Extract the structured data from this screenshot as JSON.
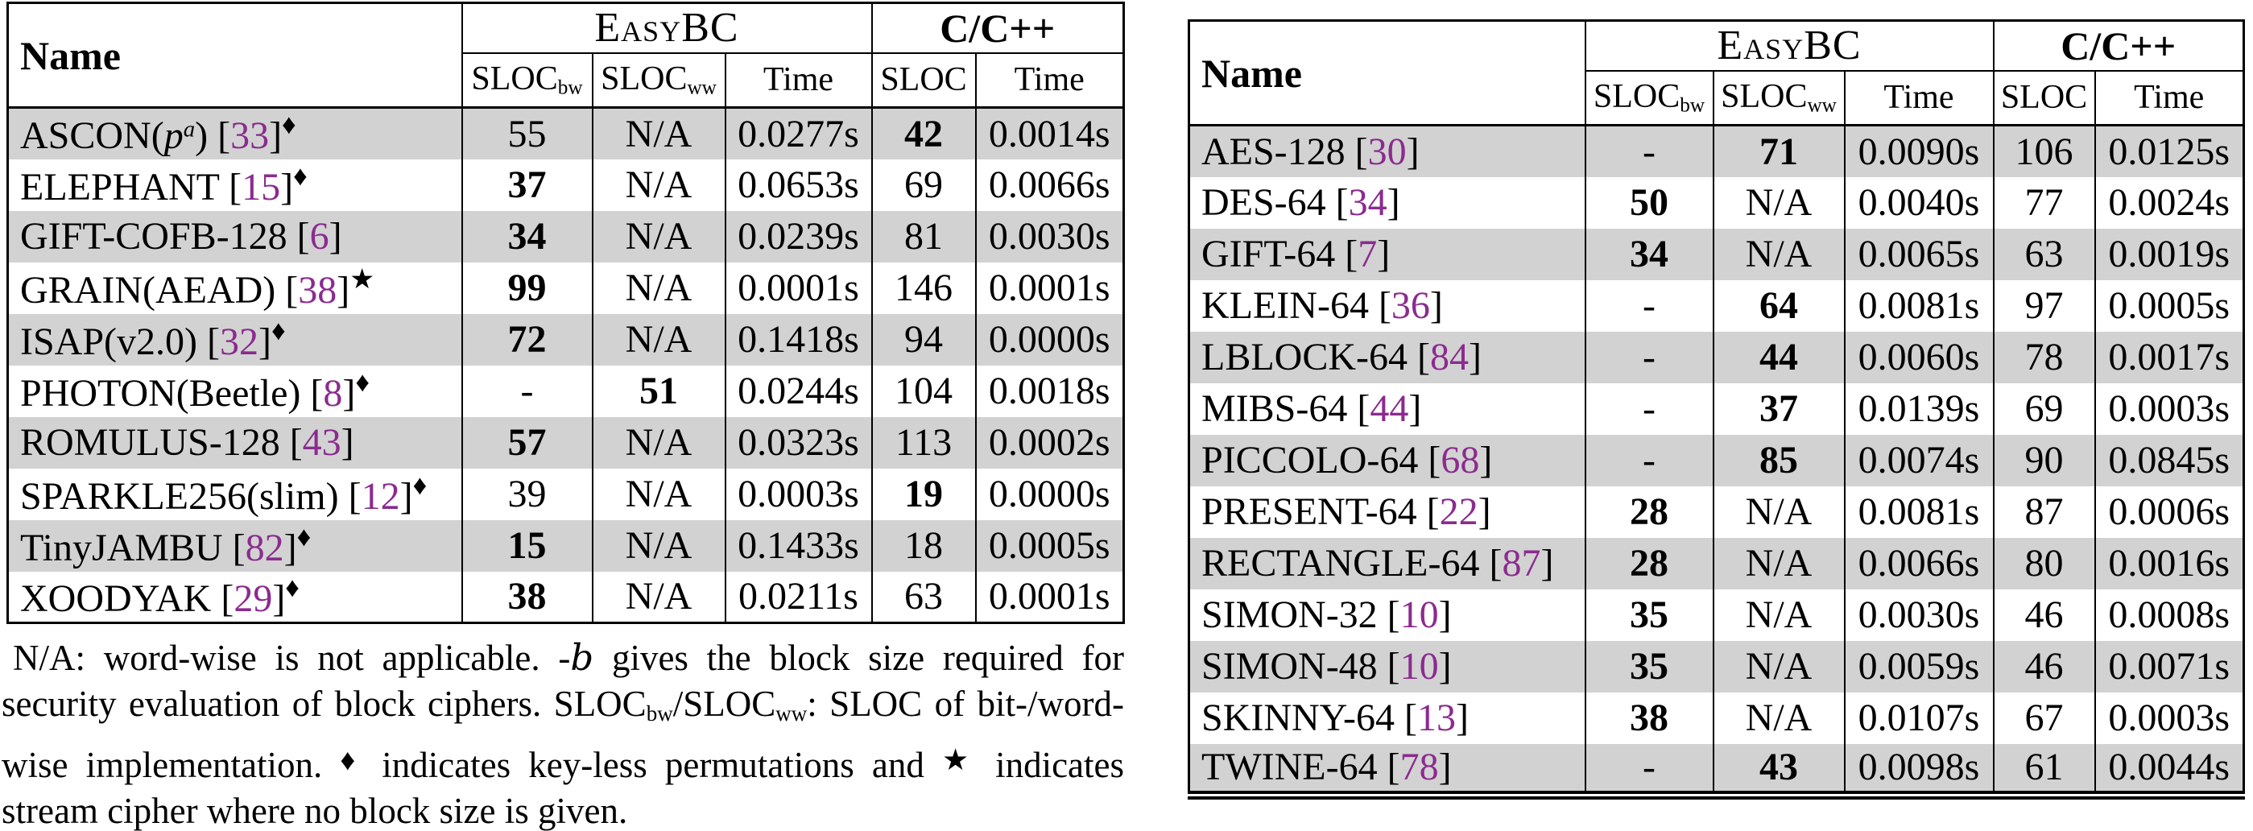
{
  "styles": {
    "citation_color": "#8B2B8F",
    "stripe_color": "#D2D2D2",
    "border_color": "#000000"
  },
  "left_table": {
    "headers": {
      "name": "Name",
      "groups": [
        {
          "label": "EasyBC"
        },
        {
          "label": "C/C++"
        }
      ],
      "subcolumns": [
        {
          "label": "SLOC",
          "subscript": "bw"
        },
        {
          "label": "SLOC",
          "subscript": "ww"
        },
        {
          "label": "Time",
          "subscript": ""
        },
        {
          "label": "SLOC",
          "subscript": ""
        },
        {
          "label": "Time",
          "subscript": ""
        }
      ]
    },
    "rows": [
      {
        "name": [
          {
            "t": "ASCON("
          },
          {
            "t": "p",
            "s": "i"
          },
          {
            "t": "a",
            "s": "supi"
          },
          {
            "t": ") ["
          },
          {
            "t": "33",
            "s": "cite"
          },
          {
            "t": "]"
          },
          {
            "t": "♦",
            "s": "sym"
          }
        ],
        "cells": [
          {
            "v": "55"
          },
          {
            "v": "N/A"
          },
          {
            "v": "0.0277s"
          },
          {
            "v": "42",
            "b": true
          },
          {
            "v": "0.0014s"
          }
        ]
      },
      {
        "name": [
          {
            "t": "ELEPHANT ["
          },
          {
            "t": "15",
            "s": "cite"
          },
          {
            "t": "]"
          },
          {
            "t": "♦",
            "s": "sym"
          }
        ],
        "cells": [
          {
            "v": "37",
            "b": true
          },
          {
            "v": "N/A"
          },
          {
            "v": "0.0653s"
          },
          {
            "v": "69"
          },
          {
            "v": "0.0066s"
          }
        ]
      },
      {
        "name": [
          {
            "t": "GIFT-COFB-128 ["
          },
          {
            "t": "6",
            "s": "cite"
          },
          {
            "t": "]"
          }
        ],
        "cells": [
          {
            "v": "34",
            "b": true
          },
          {
            "v": "N/A"
          },
          {
            "v": "0.0239s"
          },
          {
            "v": "81"
          },
          {
            "v": "0.0030s"
          }
        ]
      },
      {
        "name": [
          {
            "t": "GRAIN(AEAD) ["
          },
          {
            "t": "38",
            "s": "cite"
          },
          {
            "t": "]"
          },
          {
            "t": "★",
            "s": "sym"
          }
        ],
        "cells": [
          {
            "v": "99",
            "b": true
          },
          {
            "v": "N/A"
          },
          {
            "v": "0.0001s"
          },
          {
            "v": "146"
          },
          {
            "v": "0.0001s"
          }
        ]
      },
      {
        "name": [
          {
            "t": "ISAP(v2.0) ["
          },
          {
            "t": "32",
            "s": "cite"
          },
          {
            "t": "]"
          },
          {
            "t": "♦",
            "s": "sym"
          }
        ],
        "cells": [
          {
            "v": "72",
            "b": true
          },
          {
            "v": "N/A"
          },
          {
            "v": "0.1418s"
          },
          {
            "v": "94"
          },
          {
            "v": "0.0000s"
          }
        ]
      },
      {
        "name": [
          {
            "t": "PHOTON(Beetle) ["
          },
          {
            "t": "8",
            "s": "cite"
          },
          {
            "t": "]"
          },
          {
            "t": "♦",
            "s": "sym"
          }
        ],
        "cells": [
          {
            "v": "-"
          },
          {
            "v": "51",
            "b": true
          },
          {
            "v": "0.0244s"
          },
          {
            "v": "104"
          },
          {
            "v": "0.0018s"
          }
        ]
      },
      {
        "name": [
          {
            "t": "ROMULUS-128 ["
          },
          {
            "t": "43",
            "s": "cite"
          },
          {
            "t": "]"
          }
        ],
        "cells": [
          {
            "v": "57",
            "b": true
          },
          {
            "v": "N/A"
          },
          {
            "v": "0.0323s"
          },
          {
            "v": "113"
          },
          {
            "v": "0.0002s"
          }
        ]
      },
      {
        "name": [
          {
            "t": "SPARKLE256(slim) ["
          },
          {
            "t": "12",
            "s": "cite"
          },
          {
            "t": "]"
          },
          {
            "t": "♦",
            "s": "sym"
          }
        ],
        "cells": [
          {
            "v": "39"
          },
          {
            "v": "N/A"
          },
          {
            "v": "0.0003s"
          },
          {
            "v": "19",
            "b": true
          },
          {
            "v": "0.0000s"
          }
        ]
      },
      {
        "name": [
          {
            "t": "TinyJAMBU ["
          },
          {
            "t": "82",
            "s": "cite"
          },
          {
            "t": "]"
          },
          {
            "t": "♦",
            "s": "sym"
          }
        ],
        "cells": [
          {
            "v": "15",
            "b": true
          },
          {
            "v": "N/A"
          },
          {
            "v": "0.1433s"
          },
          {
            "v": "18"
          },
          {
            "v": "0.0005s"
          }
        ]
      },
      {
        "name": [
          {
            "t": "XOODYAK ["
          },
          {
            "t": "29",
            "s": "cite"
          },
          {
            "t": "]"
          },
          {
            "t": "♦",
            "s": "sym"
          }
        ],
        "cells": [
          {
            "v": "38",
            "b": true
          },
          {
            "v": "N/A"
          },
          {
            "v": "0.0211s"
          },
          {
            "v": "63"
          },
          {
            "v": "0.0001s"
          }
        ]
      }
    ]
  },
  "right_table": {
    "headers": {
      "name": "Name",
      "groups": [
        {
          "label": "EasyBC"
        },
        {
          "label": "C/C++"
        }
      ],
      "subcolumns": [
        {
          "label": "SLOC",
          "subscript": "bw"
        },
        {
          "label": "SLOC",
          "subscript": "ww"
        },
        {
          "label": "Time",
          "subscript": ""
        },
        {
          "label": "SLOC",
          "subscript": ""
        },
        {
          "label": "Time",
          "subscript": ""
        }
      ]
    },
    "rows": [
      {
        "name": [
          {
            "t": "AES-128 ["
          },
          {
            "t": "30",
            "s": "cite"
          },
          {
            "t": "]"
          }
        ],
        "cells": [
          {
            "v": "-"
          },
          {
            "v": "71",
            "b": true
          },
          {
            "v": "0.0090s"
          },
          {
            "v": "106"
          },
          {
            "v": "0.0125s"
          }
        ]
      },
      {
        "name": [
          {
            "t": "DES-64 ["
          },
          {
            "t": "34",
            "s": "cite"
          },
          {
            "t": "]"
          }
        ],
        "cells": [
          {
            "v": "50",
            "b": true
          },
          {
            "v": "N/A"
          },
          {
            "v": "0.0040s"
          },
          {
            "v": "77"
          },
          {
            "v": "0.0024s"
          }
        ]
      },
      {
        "name": [
          {
            "t": "GIFT-64 ["
          },
          {
            "t": "7",
            "s": "cite"
          },
          {
            "t": "]"
          }
        ],
        "cells": [
          {
            "v": "34",
            "b": true
          },
          {
            "v": "N/A"
          },
          {
            "v": "0.0065s"
          },
          {
            "v": "63"
          },
          {
            "v": "0.0019s"
          }
        ]
      },
      {
        "name": [
          {
            "t": "KLEIN-64 ["
          },
          {
            "t": "36",
            "s": "cite"
          },
          {
            "t": "]"
          }
        ],
        "cells": [
          {
            "v": "-"
          },
          {
            "v": "64",
            "b": true
          },
          {
            "v": "0.0081s"
          },
          {
            "v": "97"
          },
          {
            "v": "0.0005s"
          }
        ]
      },
      {
        "name": [
          {
            "t": "LBLOCK-64 ["
          },
          {
            "t": "84",
            "s": "cite"
          },
          {
            "t": "]"
          }
        ],
        "cells": [
          {
            "v": "-"
          },
          {
            "v": "44",
            "b": true
          },
          {
            "v": "0.0060s"
          },
          {
            "v": "78"
          },
          {
            "v": "0.0017s"
          }
        ]
      },
      {
        "name": [
          {
            "t": "MIBS-64 ["
          },
          {
            "t": "44",
            "s": "cite"
          },
          {
            "t": "]"
          }
        ],
        "cells": [
          {
            "v": "-"
          },
          {
            "v": "37",
            "b": true
          },
          {
            "v": "0.0139s"
          },
          {
            "v": "69"
          },
          {
            "v": "0.0003s"
          }
        ]
      },
      {
        "name": [
          {
            "t": "PICCOLO-64 ["
          },
          {
            "t": "68",
            "s": "cite"
          },
          {
            "t": "]"
          }
        ],
        "cells": [
          {
            "v": "-"
          },
          {
            "v": "85",
            "b": true
          },
          {
            "v": "0.0074s"
          },
          {
            "v": "90"
          },
          {
            "v": "0.0845s"
          }
        ]
      },
      {
        "name": [
          {
            "t": "PRESENT-64 ["
          },
          {
            "t": "22",
            "s": "cite"
          },
          {
            "t": "]"
          }
        ],
        "cells": [
          {
            "v": "28",
            "b": true
          },
          {
            "v": "N/A"
          },
          {
            "v": "0.0081s"
          },
          {
            "v": "87"
          },
          {
            "v": "0.0006s"
          }
        ]
      },
      {
        "name": [
          {
            "t": "RECTANGLE-64 ["
          },
          {
            "t": "87",
            "s": "cite"
          },
          {
            "t": "]"
          }
        ],
        "cells": [
          {
            "v": "28",
            "b": true
          },
          {
            "v": "N/A"
          },
          {
            "v": "0.0066s"
          },
          {
            "v": "80"
          },
          {
            "v": "0.0016s"
          }
        ]
      },
      {
        "name": [
          {
            "t": "SIMON-32 ["
          },
          {
            "t": "10",
            "s": "cite"
          },
          {
            "t": "]"
          }
        ],
        "cells": [
          {
            "v": "35",
            "b": true
          },
          {
            "v": "N/A"
          },
          {
            "v": "0.0030s"
          },
          {
            "v": "46"
          },
          {
            "v": "0.0008s"
          }
        ]
      },
      {
        "name": [
          {
            "t": "SIMON-48 ["
          },
          {
            "t": "10",
            "s": "cite"
          },
          {
            "t": "]"
          }
        ],
        "cells": [
          {
            "v": "35",
            "b": true
          },
          {
            "v": "N/A"
          },
          {
            "v": "0.0059s"
          },
          {
            "v": "46"
          },
          {
            "v": "0.0071s"
          }
        ]
      },
      {
        "name": [
          {
            "t": "SKINNY-64 ["
          },
          {
            "t": "13",
            "s": "cite"
          },
          {
            "t": "]"
          }
        ],
        "cells": [
          {
            "v": "38",
            "b": true
          },
          {
            "v": "N/A"
          },
          {
            "v": "0.0107s"
          },
          {
            "v": "67"
          },
          {
            "v": "0.0003s"
          }
        ]
      },
      {
        "name": [
          {
            "t": "TWINE-64 ["
          },
          {
            "t": "78",
            "s": "cite"
          },
          {
            "t": "]"
          }
        ],
        "cells": [
          {
            "v": "-"
          },
          {
            "v": "43",
            "b": true
          },
          {
            "v": "0.0098s"
          },
          {
            "v": "61"
          },
          {
            "v": "0.0044s"
          }
        ]
      }
    ]
  },
  "footnote": {
    "segments": [
      {
        "t": "N/A: word-wise is not applicable. -"
      },
      {
        "t": "b",
        "s": "scriptb"
      },
      {
        "t": " gives the block size required for security evaluation of block ciphers. SLOC"
      },
      {
        "t": "bw",
        "s": "sub"
      },
      {
        "t": "/SLOC"
      },
      {
        "t": "ww",
        "s": "sub"
      },
      {
        "t": ": SLOC of bit-/word-wise implementation. "
      },
      {
        "t": "♦",
        "s": "fsym"
      },
      {
        "t": " indicates key-less permutations and "
      },
      {
        "t": "★",
        "s": "fsym"
      },
      {
        "t": " indicates stream cipher where no block size is given."
      }
    ]
  }
}
